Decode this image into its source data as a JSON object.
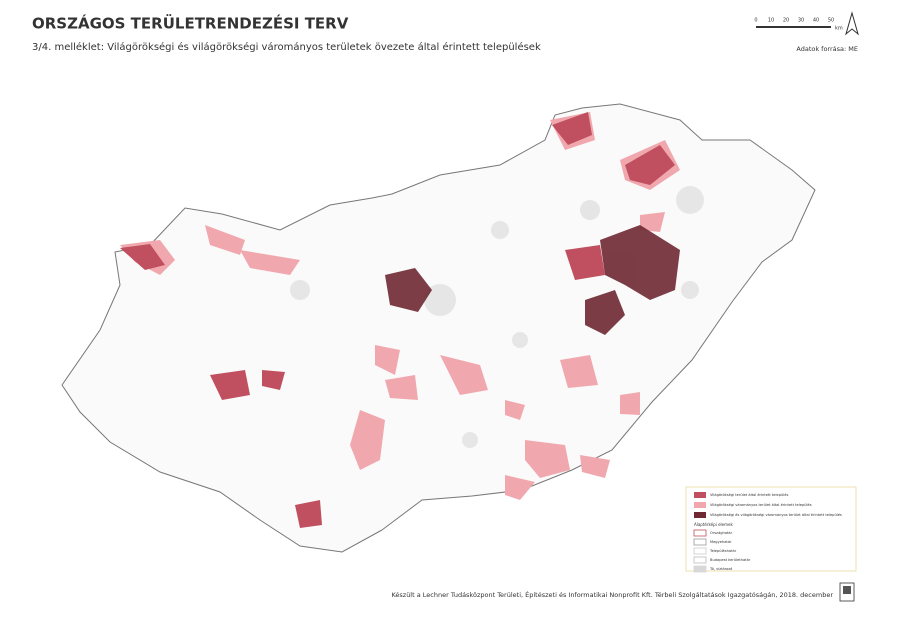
{
  "header": {
    "title": "ORSZÁGOS TERÜLETRENDEZÉSI TERV",
    "subtitle": "3/4. melléklet: Világörökségi és világörökségi várományos területek övezete által érintett települések",
    "source": "Adatok forrása: ME"
  },
  "scale": {
    "labels": [
      "0",
      "10",
      "20",
      "30",
      "40",
      "50"
    ],
    "unit": "km"
  },
  "legend": {
    "items": [
      {
        "label": "Világörökségi terület által érintett település",
        "color": "#c0505f"
      },
      {
        "label": "Világörökségi várományos terület által érintett település",
        "color": "#f0a8ae"
      },
      {
        "label": "Világörökségi és világörökségi várományos terület által érintett település",
        "color": "#6e2832"
      }
    ],
    "base_title": "Alaptérképi elemek",
    "base_items": [
      "Országhatár",
      "Megyehatár",
      "Településhatár",
      "Budapest kerülethatár",
      "Tó, víztározó"
    ]
  },
  "footer": "Készült a Lechner Tudásközpont Területi, Építészeti és Informatikai Nonprofit Kft. Térbeli Szolgáltatások Igazgatóságán, 2018. december"
}
